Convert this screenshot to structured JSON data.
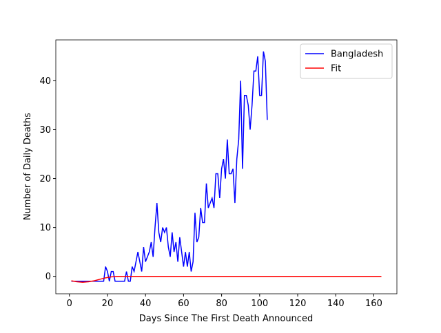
{
  "chart_data": {
    "type": "line",
    "xlabel": "Days Since The First Death Announced",
    "ylabel": "Number of Daily Deaths",
    "xlim": [
      -7.15,
      172.15
    ],
    "xticks": [
      0,
      20,
      40,
      60,
      80,
      100,
      120,
      140,
      160
    ],
    "ylim": [
      -3.56,
      48.36
    ],
    "yticks": [
      0,
      10,
      20,
      30,
      40
    ],
    "legend": "upper right",
    "series": [
      {
        "name": "Bangladesh",
        "color": "#0000ff",
        "x": [
          1,
          2,
          3,
          4,
          5,
          6,
          7,
          8,
          9,
          10,
          11,
          12,
          13,
          14,
          15,
          16,
          17,
          18,
          19,
          20,
          21,
          22,
          23,
          24,
          25,
          26,
          27,
          28,
          29,
          30,
          31,
          32,
          33,
          34,
          35,
          36,
          37,
          38,
          39,
          40,
          41,
          42,
          43,
          44,
          45,
          46,
          47,
          48,
          49,
          50,
          51,
          52,
          53,
          54,
          55,
          56,
          57,
          58,
          59,
          60,
          61,
          62,
          63,
          64,
          65,
          66,
          67,
          68,
          69,
          70,
          71,
          72,
          73,
          74,
          75,
          76,
          77,
          78,
          79,
          80,
          81,
          82,
          83,
          84,
          85,
          86,
          87,
          88,
          89,
          90,
          91,
          92,
          93,
          94,
          95,
          96,
          97,
          98,
          99,
          100,
          101,
          102,
          103,
          104
        ],
        "values": [
          -1,
          -1,
          -1,
          -1,
          -1,
          -1,
          -1,
          -1,
          -1,
          -1,
          -1,
          -1,
          -1,
          -1,
          -1,
          -1,
          -1,
          -1,
          2,
          1,
          -1,
          1,
          1,
          -1,
          -1,
          -1,
          -1,
          -1,
          -1,
          1,
          -1,
          -1,
          2,
          1,
          3,
          5,
          3,
          1,
          6,
          3,
          4,
          5,
          7,
          4,
          10,
          15,
          9,
          7,
          10,
          9,
          10,
          6,
          4,
          9,
          5,
          7,
          3,
          8,
          5,
          2,
          5,
          2,
          5,
          1,
          3,
          13,
          7,
          8,
          14,
          11,
          11,
          19,
          14,
          15,
          16,
          14,
          21,
          21,
          16,
          22,
          24,
          20,
          28,
          21,
          21,
          22,
          15,
          24,
          28,
          40,
          22,
          37,
          37,
          35,
          30,
          35,
          42,
          42,
          45,
          37,
          37,
          46,
          44,
          32
        ]
      },
      {
        "name": "Fit",
        "color": "#ff0000",
        "x": [
          1,
          4,
          7,
          10,
          13,
          16,
          19,
          22,
          25,
          30,
          164
        ],
        "values": [
          -0.9,
          -1.1,
          -1.2,
          -1.1,
          -0.9,
          -0.6,
          -0.3,
          -0.1,
          0,
          0,
          0
        ]
      }
    ]
  }
}
